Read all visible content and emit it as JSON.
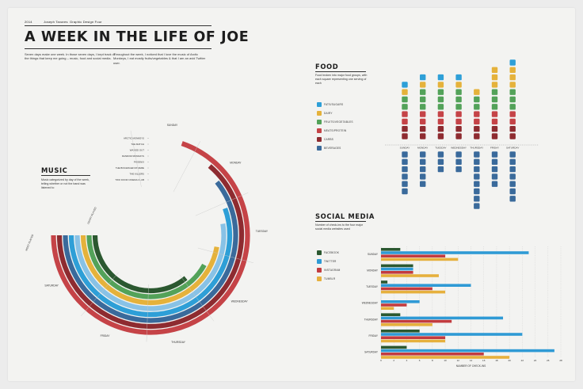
{
  "header": {
    "year": "2014",
    "author": "Joseph Tavares",
    "course": "Graphic Design Four",
    "title": "A WEEK IN THE LIFE OF JOE",
    "intro_left": "Seven days make one week. In those seven days, I kept track of the things that keep me going – music, food and social media.",
    "intro_right": "Throughout the week, I noticed that I love the music of Arctic Monkeys, I eat mostly fruits/vegetables & that I am an avid Twitter user."
  },
  "music": {
    "title": "MUSIC",
    "description": "Music categorized by day of the week, telling whether or not the band was listened to",
    "most_played_label": "MOST PLAYED",
    "least_played_label": "LEAST PLAYED",
    "bands": [
      "ARCTIC MONKEYS",
      "THE MATCH",
      "WAX/ED OUT",
      "RANDOM MONDAYS",
      "PHOENIX",
      "THE BOGWAGEN RIVIERE",
      "THE KILLERS",
      "TWO DOOR CINEMA CLUB"
    ],
    "days": [
      "SUNDAY",
      "MONDAY",
      "TUESDAY",
      "WEDNESDAY",
      "THURSDAY",
      "FRIDAY",
      "SATURDAY"
    ]
  },
  "food": {
    "title": "FOOD",
    "description": "Food broken into major food groups, with each square representing one serving of each",
    "legend": [
      "FATS/SUGARS",
      "DAIRY",
      "FRUITS/VEGETABLES",
      "MEATS/PROTEIN",
      "CARBS",
      "BEVERAGES"
    ]
  },
  "social": {
    "title": "SOCIAL MEDIA",
    "description": "Number of check-ins to the four major social media websites used",
    "legend": [
      "FACEBOOK",
      "TWITTER",
      "INSTAGRAM",
      "TUMBLR"
    ]
  },
  "colors": {
    "fats": "#2e9fd7",
    "dairy": "#e5b23b",
    "fruits": "#53a259",
    "meats": "#c54347",
    "carbs": "#8e2b30",
    "beverages": "#3a6a9b",
    "facebook": "#2b5830",
    "twitter": "#2f9ad5",
    "instagram": "#c23b3f",
    "tumblr": "#e6b03d"
  },
  "chart_data": [
    {
      "type": "radial",
      "title": "MUSIC",
      "series_order": "inner-to-outer",
      "categories": [
        "SUNDAY",
        "MONDAY",
        "TUESDAY",
        "WEDNESDAY",
        "THURSDAY",
        "FRIDAY",
        "SATURDAY"
      ],
      "series": [
        {
          "name": "TWO DOOR CINEMA CLUB",
          "color": "#2b5830",
          "listened_fraction": 0.48
        },
        {
          "name": "THE KILLERS",
          "color": "#53a259",
          "listened_fraction": 0.56
        },
        {
          "name": "THE BOGWAGEN RIVIERE",
          "color": "#e5b23b",
          "listened_fraction": 0.63
        },
        {
          "name": "PHOENIX",
          "color": "#88c2e6",
          "listened_fraction": 0.7
        },
        {
          "name": "RANDOM MONDAYS",
          "color": "#2e9fd7",
          "listened_fraction": 0.74
        },
        {
          "name": "WAX/ED OUT",
          "color": "#3a6a9b",
          "listened_fraction": 0.81
        },
        {
          "name": "THE MATCH",
          "color": "#8e2b30",
          "listened_fraction": 0.85
        },
        {
          "name": "ARCTIC MONKEYS",
          "color": "#c54347",
          "listened_fraction": 0.93
        }
      ]
    },
    {
      "type": "bar",
      "title": "FOOD",
      "categories": [
        "SUNDAY",
        "MONDAY",
        "TUESDAY",
        "WEDNESDAY",
        "THURSDAY",
        "FRIDAY",
        "SATURDAY"
      ],
      "series": [
        {
          "name": "CARBS",
          "values": [
            2,
            2,
            2,
            2,
            2,
            2,
            2
          ]
        },
        {
          "name": "MEATS/PROTEIN",
          "values": [
            2,
            2,
            2,
            2,
            2,
            2,
            2
          ]
        },
        {
          "name": "FRUITS/VEGETABLES",
          "values": [
            2,
            3,
            3,
            3,
            2,
            3,
            3
          ]
        },
        {
          "name": "DAIRY",
          "values": [
            1,
            1,
            1,
            1,
            1,
            3,
            3
          ]
        },
        {
          "name": "FATS/SUGARS",
          "values": [
            1,
            1,
            1,
            1,
            0,
            0,
            1
          ]
        },
        {
          "name": "BEVERAGES",
          "values": [
            6,
            5,
            3,
            3,
            8,
            5,
            7
          ]
        }
      ]
    },
    {
      "type": "bar",
      "orientation": "horizontal",
      "title": "SOCIAL MEDIA",
      "xlabel": "NUMBER OF CHECK-INS",
      "xlim": [
        0,
        28
      ],
      "xticks": [
        0,
        2,
        4,
        6,
        8,
        10,
        12,
        14,
        16,
        18,
        20,
        22,
        24,
        26,
        28
      ],
      "categories": [
        "SUNDAY",
        "MONDAY",
        "TUESDAY",
        "WEDNESDAY",
        "THURSDAY",
        "FRIDAY",
        "SATURDAY"
      ],
      "series": [
        {
          "name": "FACEBOOK",
          "values": [
            3,
            5,
            1,
            0,
            3,
            6,
            4
          ]
        },
        {
          "name": "TWITTER",
          "values": [
            23,
            5,
            14,
            6,
            19,
            22,
            27
          ]
        },
        {
          "name": "INSTAGRAM",
          "values": [
            10,
            5,
            8,
            4,
            11,
            10,
            16
          ]
        },
        {
          "name": "TUMBLR",
          "values": [
            12,
            9,
            10,
            2,
            8,
            10,
            20
          ]
        }
      ]
    }
  ]
}
